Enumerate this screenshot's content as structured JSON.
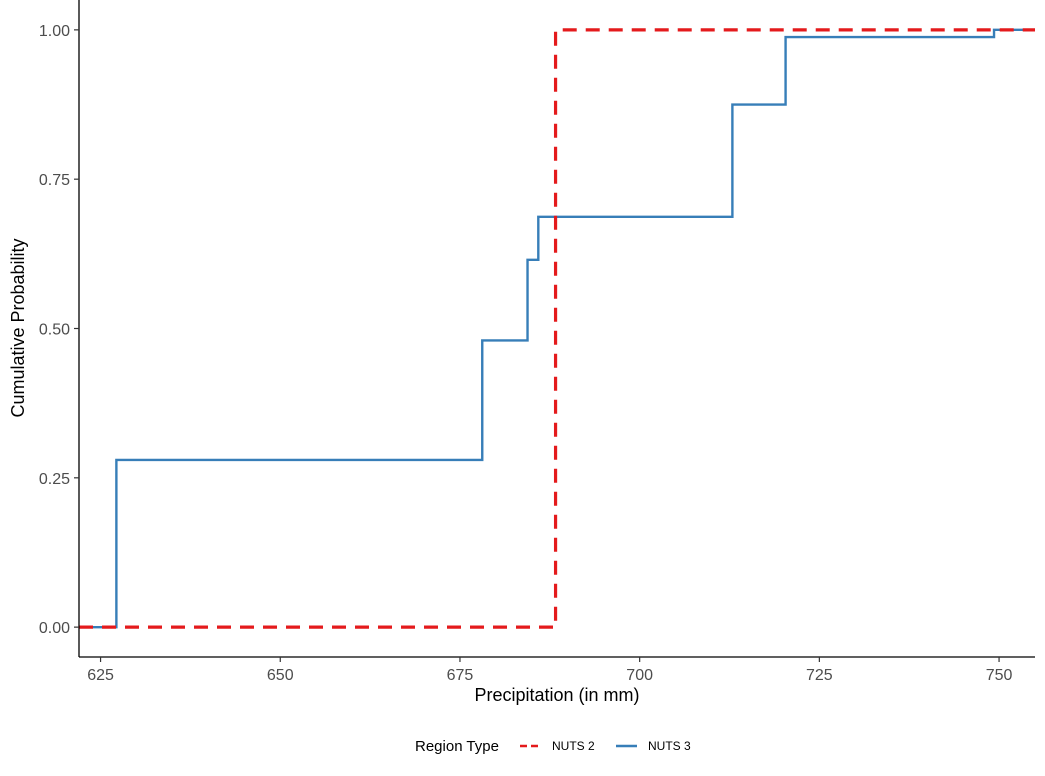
{
  "chart_data": {
    "type": "line",
    "step": true,
    "title": "",
    "xlabel": "Precipitation (in mm)",
    "ylabel": "Cumulative Probability",
    "xlim": [
      622,
      755
    ],
    "ylim": [
      -0.05,
      1.05
    ],
    "x_ticks": [
      625,
      650,
      675,
      700,
      725,
      750
    ],
    "x_tick_labels": [
      "625",
      "650",
      "675",
      "700",
      "725",
      "750"
    ],
    "y_ticks": [
      0,
      0.25,
      0.5,
      0.75,
      1.0
    ],
    "y_tick_labels": [
      "0.00",
      "0.25",
      "0.50",
      "0.75",
      "1.00"
    ],
    "grid": false,
    "legend": {
      "title": "Region Type",
      "placement": "bottom",
      "entries": [
        "NUTS 2",
        "NUTS 3"
      ]
    },
    "series": [
      {
        "name": "NUTS 2",
        "color": "#e41a1c",
        "dash": "dashed",
        "x": [
          622,
          688.3,
          688.3,
          755
        ],
        "y": [
          0,
          0,
          1,
          1
        ]
      },
      {
        "name": "NUTS 3",
        "color": "#377eb8",
        "dash": "solid",
        "x": [
          622,
          627.2,
          627.2,
          678.1,
          678.1,
          684.4,
          684.4,
          685.9,
          685.9,
          712.9,
          712.9,
          720.3,
          720.3,
          749.3,
          749.3,
          755
        ],
        "y": [
          0,
          0,
          0.28,
          0.28,
          0.48,
          0.48,
          0.615,
          0.615,
          0.687,
          0.687,
          0.875,
          0.875,
          0.988,
          0.988,
          1.0,
          1.0
        ]
      }
    ]
  }
}
